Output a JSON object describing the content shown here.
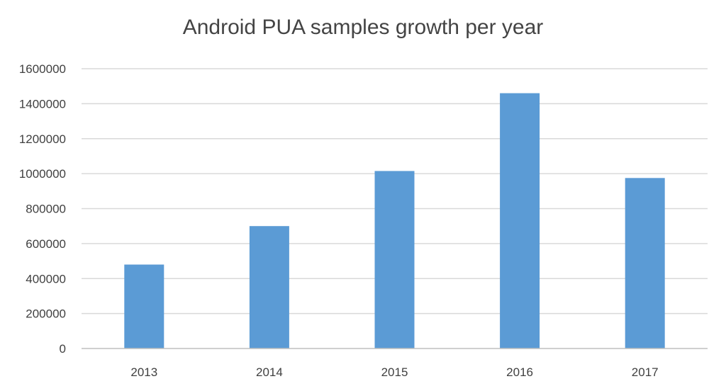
{
  "chart_data": {
    "type": "bar",
    "title": "Android PUA samples growth per year",
    "xlabel": "",
    "ylabel": "",
    "categories": [
      "2013",
      "2014",
      "2015",
      "2016",
      "2017"
    ],
    "values": [
      480000,
      700000,
      1015000,
      1460000,
      975000
    ],
    "ylim": [
      0,
      1600000
    ],
    "yticks": [
      0,
      200000,
      400000,
      600000,
      800000,
      1000000,
      1200000,
      1400000,
      1600000
    ],
    "ytick_labels": [
      "0",
      "200000",
      "400000",
      "600000",
      "800000",
      "1000000",
      "1200000",
      "1400000",
      "1600000"
    ],
    "grid": true,
    "legend": "none",
    "bar_color": "#5b9bd5"
  }
}
